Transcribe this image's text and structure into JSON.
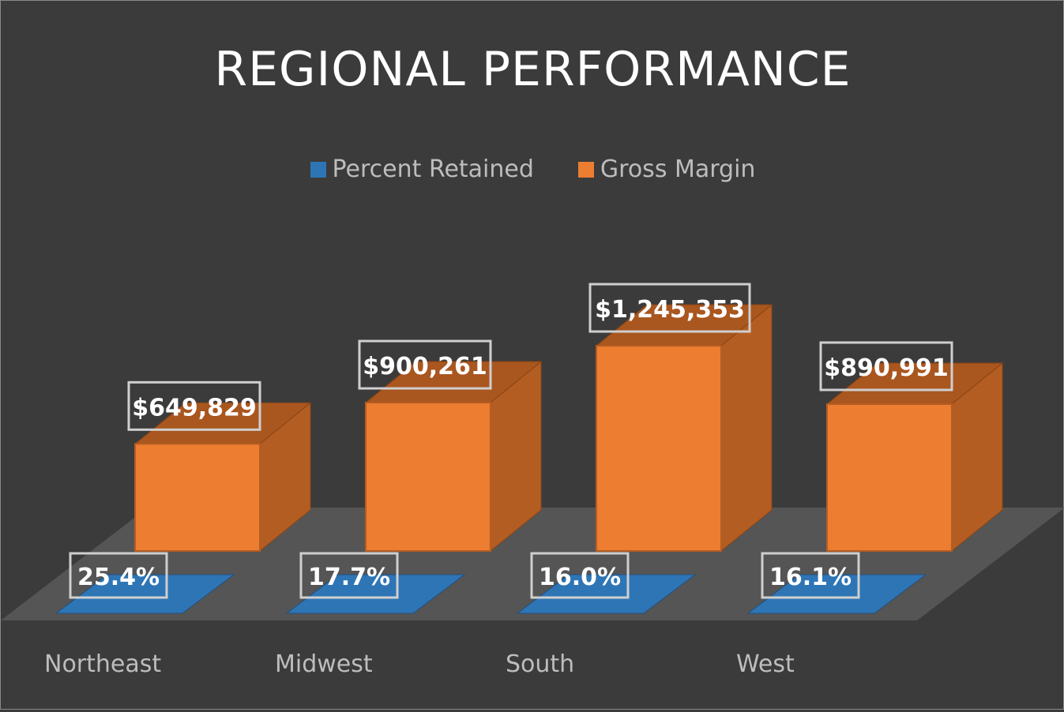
{
  "chart_data": {
    "type": "bar",
    "title": "REGIONAL PERFORMANCE",
    "categories": [
      "Northeast",
      "Midwest",
      "South",
      "West"
    ],
    "series": [
      {
        "name": "Percent Retained",
        "values": [
          25.4,
          17.7,
          16.0,
          16.1
        ],
        "labels": [
          "25.4%",
          "17.7%",
          "16.0%",
          "16.1%"
        ],
        "color": "#2e75b6"
      },
      {
        "name": "Gross Margin",
        "values": [
          649829,
          900261,
          1245353,
          890991
        ],
        "labels": [
          "$649,829",
          "$900,261",
          "$1,245,353",
          "$890,991"
        ],
        "color": "#ed7d31"
      }
    ],
    "legend": "top",
    "grid": false,
    "style": "3d-column"
  },
  "colors": {
    "background": "#3b3b3b",
    "floor": "#555555",
    "text": "#bdbdbd",
    "title": "#ffffff"
  }
}
